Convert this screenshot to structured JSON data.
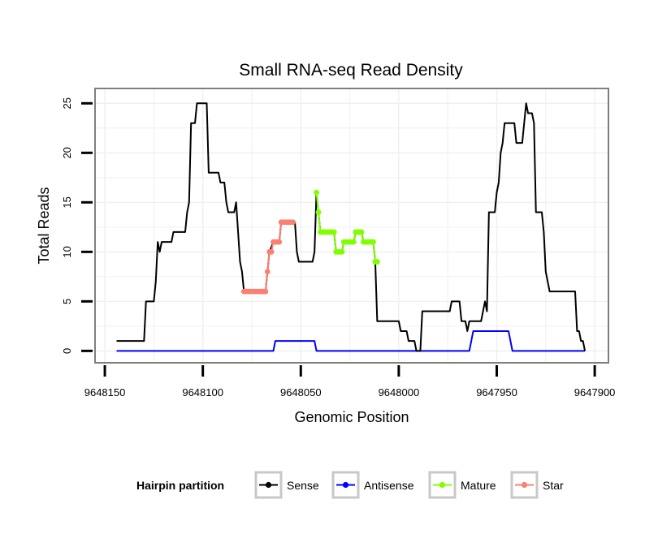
{
  "chart_data": {
    "type": "line",
    "title": "Small RNA-seq Read Density",
    "xlabel": "Genomic Position",
    "ylabel": "Total Reads",
    "x_reversed": true,
    "xlim": [
      9648155,
      9647893
    ],
    "ylim": [
      -1.2,
      26.5
    ],
    "x_ticks": [
      9648150,
      9648100,
      9648050,
      9648000,
      9647950,
      9647900
    ],
    "x_tick_labels": [
      "9648150",
      "9648100",
      "9648050",
      "9648000",
      "9647950",
      "9647900"
    ],
    "y_ticks": [
      0,
      5,
      10,
      15,
      20,
      25
    ],
    "y_tick_labels": [
      "0",
      "5",
      "10",
      "15",
      "20",
      "25"
    ],
    "grid": true,
    "colors": {
      "sense": "#000000",
      "antisense": "#0000ff",
      "mature": "#7fff00",
      "star": "#fa8072",
      "panel_border": "#7f7f7f",
      "grid": "#f0f0f0",
      "legend_key_border": "#c8c8c8"
    },
    "series": [
      {
        "name": "Sense",
        "color": "#000000",
        "points": [
          [
            9648144,
            1
          ],
          [
            9648130,
            1
          ],
          [
            9648129,
            5
          ],
          [
            9648125,
            5
          ],
          [
            9648124,
            7
          ],
          [
            9648123,
            11
          ],
          [
            9648122,
            10
          ],
          [
            9648121,
            11
          ],
          [
            9648116,
            11
          ],
          [
            9648115,
            12
          ],
          [
            9648109,
            12
          ],
          [
            9648108,
            14
          ],
          [
            9648107,
            15
          ],
          [
            9648106,
            23
          ],
          [
            9648104,
            23
          ],
          [
            9648103,
            25
          ],
          [
            9648098,
            25
          ],
          [
            9648097,
            18
          ],
          [
            9648092,
            18
          ],
          [
            9648091,
            17
          ],
          [
            9648089,
            17
          ],
          [
            9648088,
            15
          ],
          [
            9648087,
            14
          ],
          [
            9648084,
            14
          ],
          [
            9648083,
            15
          ],
          [
            9648081,
            9
          ],
          [
            9648080,
            8
          ],
          [
            9648079,
            6
          ],
          [
            9648068,
            6
          ],
          [
            9648067,
            8
          ],
          [
            9648066,
            10
          ],
          [
            9648064,
            11
          ],
          [
            9648061,
            11
          ],
          [
            9648060,
            13
          ],
          [
            9648053,
            13
          ],
          [
            9648052,
            10
          ],
          [
            9648051,
            9
          ],
          [
            9648044,
            9
          ],
          [
            9648043,
            10
          ],
          [
            9648042,
            16
          ],
          [
            9648041,
            14
          ],
          [
            9648040,
            12
          ],
          [
            9648033,
            12
          ],
          [
            9648032,
            10
          ],
          [
            9648029,
            10
          ],
          [
            9648028,
            11
          ],
          [
            9648023,
            11
          ],
          [
            9648022,
            12
          ],
          [
            9648019,
            12
          ],
          [
            9648018,
            11
          ],
          [
            9648013,
            11
          ],
          [
            9648012,
            9
          ],
          [
            9648011,
            3
          ],
          [
            9648000,
            3
          ],
          [
            9647999,
            2
          ],
          [
            9647996,
            2
          ],
          [
            9647995,
            1
          ],
          [
            9647992,
            1
          ],
          [
            9647991,
            0
          ],
          [
            9647989,
            0
          ],
          [
            9647988,
            4
          ],
          [
            9647974,
            4
          ],
          [
            9647973,
            5
          ],
          [
            9647969,
            5
          ],
          [
            9647968,
            3
          ],
          [
            9647966,
            3
          ],
          [
            9647965,
            2
          ],
          [
            9647964,
            3
          ],
          [
            9647958,
            3
          ],
          [
            9647957,
            4
          ],
          [
            9647956,
            5
          ],
          [
            9647955,
            4
          ],
          [
            9647954,
            14
          ],
          [
            9647951,
            14
          ],
          [
            9647950,
            16
          ],
          [
            9647949,
            17
          ],
          [
            9647948,
            20
          ],
          [
            9647947,
            21
          ],
          [
            9647946,
            23
          ],
          [
            9647941,
            23
          ],
          [
            9647940,
            21
          ],
          [
            9647937,
            21
          ],
          [
            9647936,
            23
          ],
          [
            9647935,
            25
          ],
          [
            9647934,
            24
          ],
          [
            9647932,
            24
          ],
          [
            9647931,
            23
          ],
          [
            9647930,
            14
          ],
          [
            9647927,
            14
          ],
          [
            9647926,
            12
          ],
          [
            9647925,
            8
          ],
          [
            9647924,
            7
          ],
          [
            9647923,
            6
          ],
          [
            9647910,
            6
          ],
          [
            9647909,
            2
          ],
          [
            9647908,
            2
          ],
          [
            9647907,
            1
          ],
          [
            9647906,
            1
          ],
          [
            9647905,
            0
          ]
        ]
      },
      {
        "name": "Antisense",
        "color": "#0000ff",
        "points": [
          [
            9648144,
            0
          ],
          [
            9648064,
            0
          ],
          [
            9648063,
            1
          ],
          [
            9648043,
            1
          ],
          [
            9648042,
            0
          ],
          [
            9647964,
            0
          ],
          [
            9647963,
            1
          ],
          [
            9647962,
            2
          ],
          [
            9647944,
            2
          ],
          [
            9647942,
            0
          ],
          [
            9647905,
            0
          ]
        ]
      },
      {
        "name": "Mature",
        "color": "#7fff00",
        "points": [
          [
            9648042,
            16
          ],
          [
            9648041,
            14
          ],
          [
            9648040,
            12
          ],
          [
            9648039,
            12
          ],
          [
            9648038,
            12
          ],
          [
            9648037,
            12
          ],
          [
            9648036,
            12
          ],
          [
            9648035,
            12
          ],
          [
            9648034,
            12
          ],
          [
            9648033,
            12
          ],
          [
            9648032,
            10
          ],
          [
            9648031,
            10
          ],
          [
            9648030,
            10
          ],
          [
            9648029,
            10
          ],
          [
            9648028,
            11
          ],
          [
            9648027,
            11
          ],
          [
            9648026,
            11
          ],
          [
            9648025,
            11
          ],
          [
            9648024,
            11
          ],
          [
            9648023,
            11
          ],
          [
            9648022,
            12
          ],
          [
            9648021,
            12
          ],
          [
            9648020,
            12
          ],
          [
            9648019,
            12
          ],
          [
            9648018,
            11
          ],
          [
            9648017,
            11
          ],
          [
            9648016,
            11
          ],
          [
            9648015,
            11
          ],
          [
            9648014,
            11
          ],
          [
            9648013,
            11
          ],
          [
            9648012,
            9
          ],
          [
            9648011,
            9
          ]
        ]
      },
      {
        "name": "Star",
        "color": "#fa8072",
        "points": [
          [
            9648079,
            6
          ],
          [
            9648078,
            6
          ],
          [
            9648077,
            6
          ],
          [
            9648076,
            6
          ],
          [
            9648075,
            6
          ],
          [
            9648074,
            6
          ],
          [
            9648073,
            6
          ],
          [
            9648072,
            6
          ],
          [
            9648071,
            6
          ],
          [
            9648070,
            6
          ],
          [
            9648069,
            6
          ],
          [
            9648068,
            6
          ],
          [
            9648067,
            8
          ],
          [
            9648066,
            10
          ],
          [
            9648065,
            10
          ],
          [
            9648064,
            11
          ],
          [
            9648063,
            11
          ],
          [
            9648062,
            11
          ],
          [
            9648061,
            11
          ],
          [
            9648060,
            13
          ],
          [
            9648059,
            13
          ],
          [
            9648058,
            13
          ],
          [
            9648057,
            13
          ],
          [
            9648056,
            13
          ],
          [
            9648055,
            13
          ],
          [
            9648054,
            13
          ]
        ]
      }
    ],
    "legend": {
      "title": "Hairpin partition",
      "position": "bottom",
      "items": [
        {
          "label": "Sense",
          "color": "#000000"
        },
        {
          "label": "Antisense",
          "color": "#0000ff"
        },
        {
          "label": "Mature",
          "color": "#7fff00"
        },
        {
          "label": "Star",
          "color": "#fa8072"
        }
      ]
    }
  }
}
